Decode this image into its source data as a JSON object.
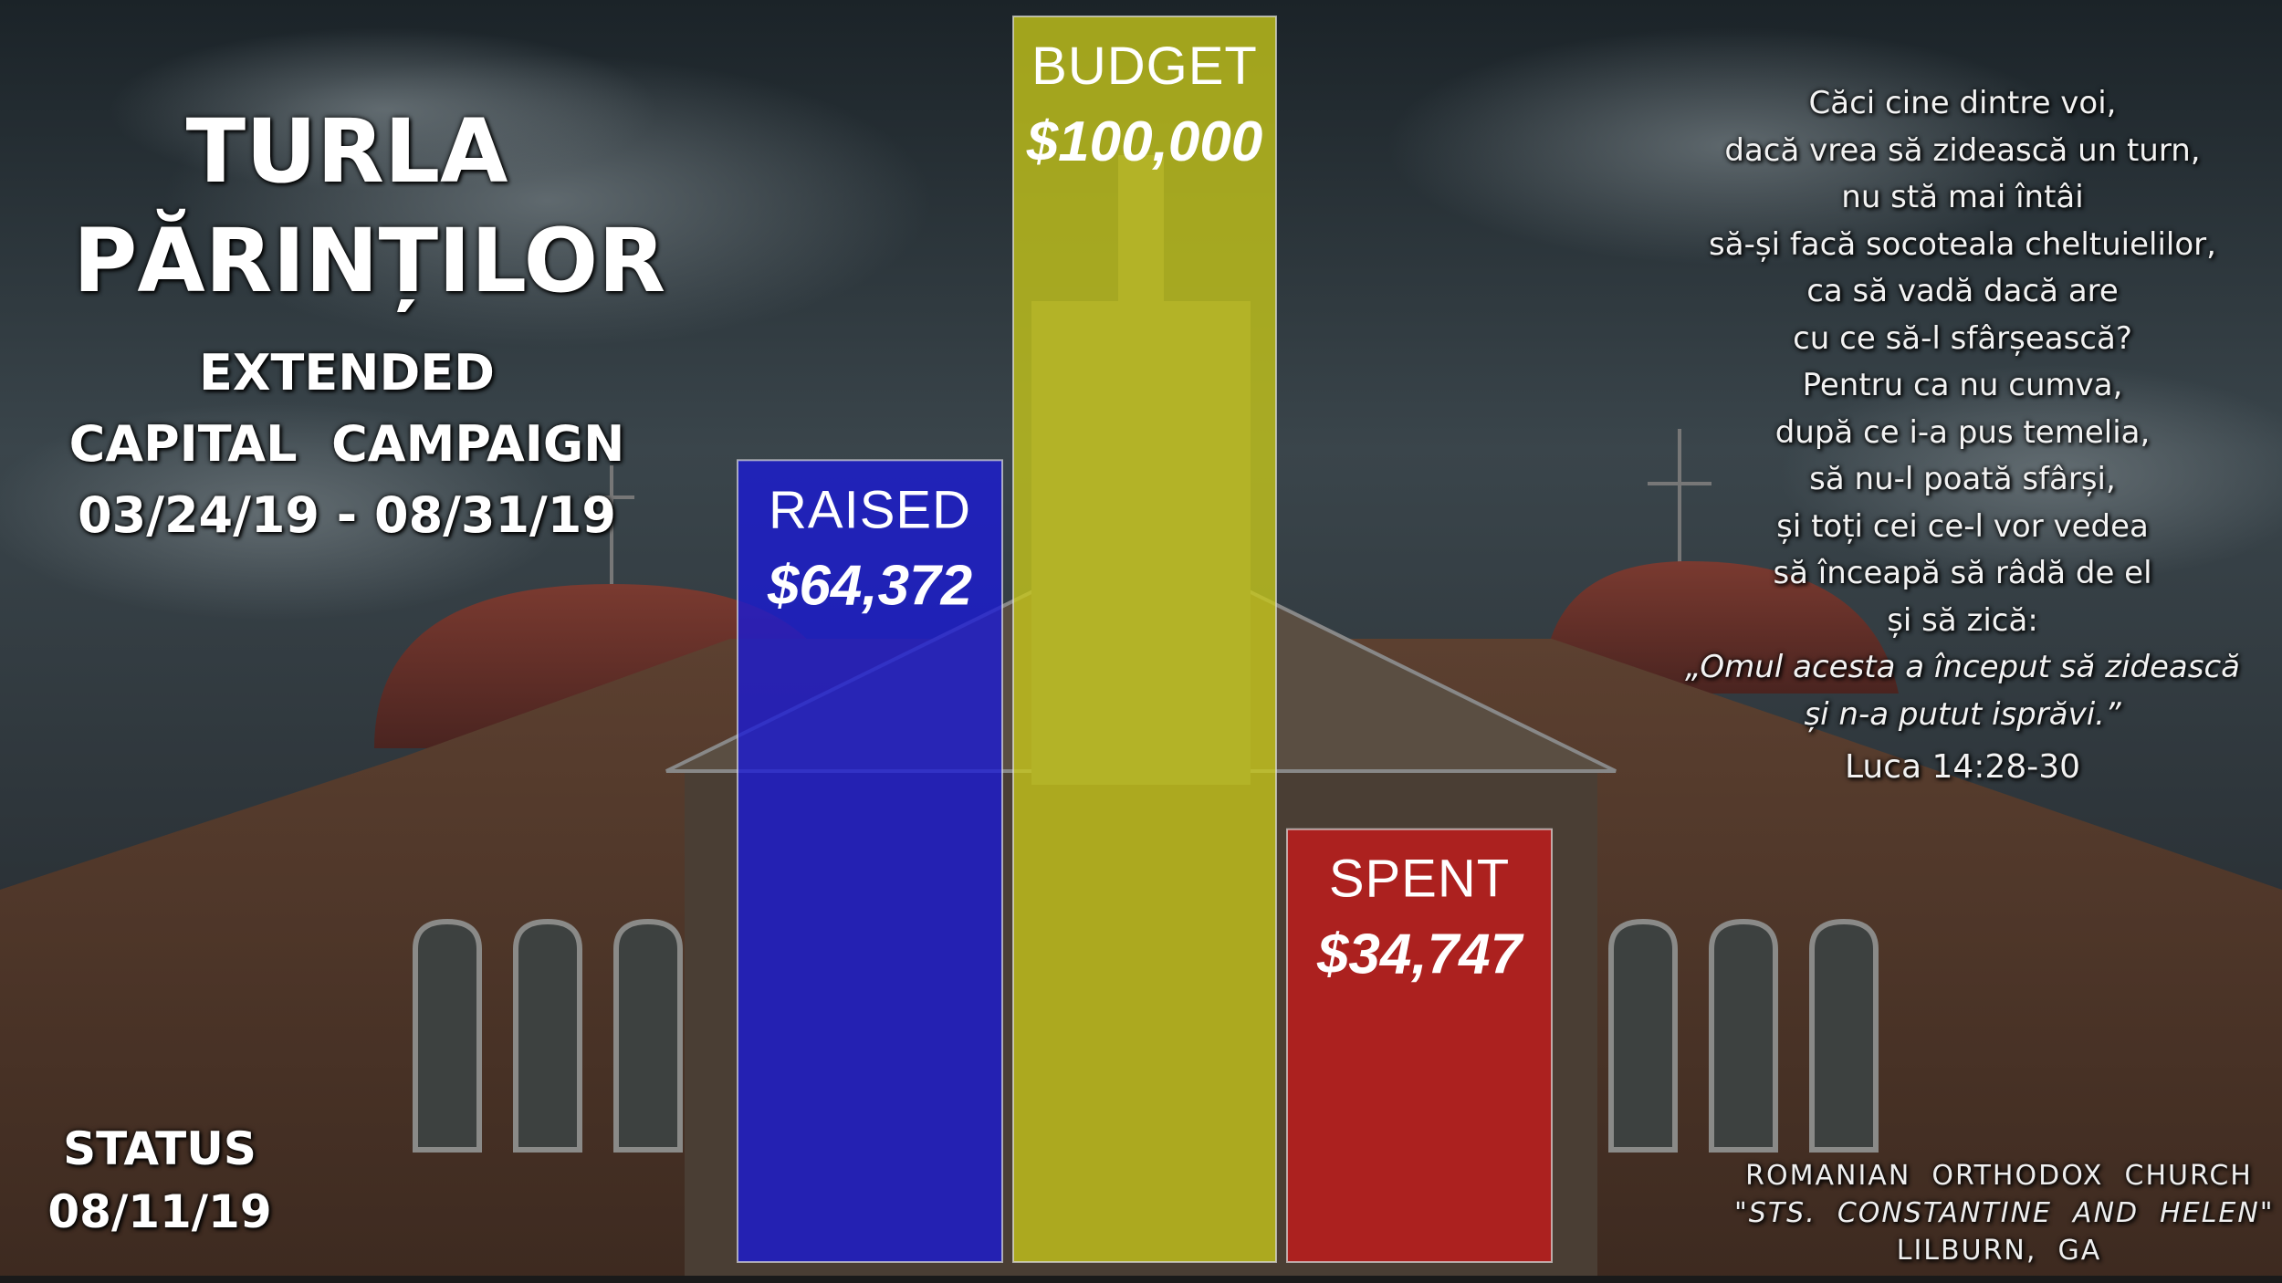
{
  "title": {
    "line1": "TURLA",
    "line2": "PĂRINȚILOR"
  },
  "campaign": {
    "line1": "EXTENDED",
    "line2": "CAPITAL  CAMPAIGN",
    "dates": "03/24/19 - 08/31/19"
  },
  "status": {
    "label": "STATUS",
    "date": "08/11/19"
  },
  "verse": {
    "lines": [
      "Căci cine dintre voi,",
      "dacă vrea să zidească un turn,",
      "nu stă mai întâi",
      "să-și facă socoteala cheltuielilor,",
      "ca să vadă dacă are",
      "cu ce să-l sfârșească?",
      "Pentru ca nu cumva,",
      "după ce i-a pus temelia,",
      "să nu-l poată sfârși,",
      "și toți cei ce-l vor vedea",
      "să înceapă să râdă de el",
      "și să zică:"
    ],
    "quote1": "„Omul acesta a început să zidească",
    "quote2": "și n-a putut isprăvi.”",
    "reference": "Luca 14:28-30"
  },
  "footer": {
    "line1": "ROMANIAN  ORTHODOX  CHURCH",
    "line2": "\"STS.  CONSTANTINE  AND  HELEN\"",
    "line3": "LILBURN,  GA"
  },
  "chart_data": {
    "type": "bar",
    "categories": [
      "RAISED",
      "BUDGET",
      "SPENT"
    ],
    "values": [
      64372,
      100000,
      34747
    ],
    "value_labels": [
      "$64,372",
      "$100,000",
      "$34,747"
    ],
    "colors": [
      "#1a1ad6",
      "#c8c81a",
      "#c81a1a"
    ],
    "ylim": [
      0,
      100000
    ],
    "grid": false,
    "legend": "none"
  },
  "colors": {
    "sky_top": "#1e262c",
    "sky_mid": "#3c474d",
    "brick": "#5a3a2a",
    "dome": "#6b2f28"
  }
}
